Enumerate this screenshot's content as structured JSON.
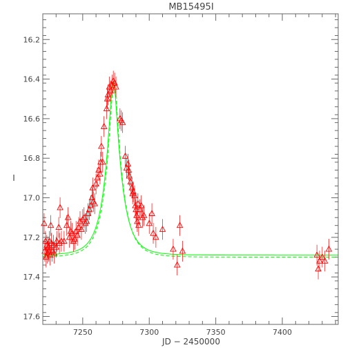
{
  "chart_data": {
    "type": "scatter",
    "title": "MB15495I",
    "xlabel": "JD − 2450000",
    "ylabel": "I",
    "xlim": [
      7220,
      7442
    ],
    "ylim": [
      17.64,
      16.07
    ],
    "y_inverted": true,
    "x_ticks": [
      7250,
      7300,
      7350,
      7400
    ],
    "y_ticks": [
      16.2,
      16.4,
      16.6,
      16.8,
      17.0,
      17.2,
      17.4,
      17.6
    ],
    "y_tick_labels": [
      "16.2",
      "16.4",
      "16.6",
      "16.8",
      "17.0",
      "17.2",
      "17.4",
      "17.6"
    ],
    "grid": false,
    "colors": {
      "data": "#ff0000",
      "model": "#00ff00",
      "axes": "#666666",
      "text": "#444444"
    },
    "series": [
      {
        "marker": "triangle",
        "points": [
          [
            7221,
            17.13
          ],
          [
            7221.5,
            17.27
          ],
          [
            7222,
            17.22
          ],
          [
            7222.5,
            17.3
          ],
          [
            7223,
            17.24
          ],
          [
            7223.5,
            17.28
          ],
          [
            7224,
            17.25
          ],
          [
            7224.5,
            17.27
          ],
          [
            7225,
            17.22
          ],
          [
            7225.5,
            17.29
          ],
          [
            7226,
            17.14
          ],
          [
            7226.5,
            17.23
          ],
          [
            7227,
            17.27
          ],
          [
            7228,
            17.24
          ],
          [
            7228.5,
            17.28
          ],
          [
            7230,
            17.25
          ],
          [
            7230.5,
            17.22
          ],
          [
            7232,
            17.15
          ],
          [
            7232.5,
            17.23
          ],
          [
            7233,
            17.05
          ],
          [
            7234,
            17.22
          ],
          [
            7236,
            17.22
          ],
          [
            7238,
            17.14
          ],
          [
            7239,
            17.1
          ],
          [
            7240,
            17.2
          ],
          [
            7241,
            17.17
          ],
          [
            7242,
            17.18
          ],
          [
            7243,
            17.22
          ],
          [
            7244,
            17.21
          ],
          [
            7245,
            17.17
          ],
          [
            7246,
            17.19
          ],
          [
            7247,
            17.15
          ],
          [
            7248,
            17.12
          ],
          [
            7249,
            17.16
          ],
          [
            7250,
            17.11
          ],
          [
            7251,
            17.1
          ],
          [
            7252,
            17.13
          ],
          [
            7253,
            17.12
          ],
          [
            7254,
            17.08
          ],
          [
            7255,
            17.06
          ],
          [
            7256,
            17.04
          ],
          [
            7257,
            17.0
          ],
          [
            7257.5,
            16.95
          ],
          [
            7258,
            17.02
          ],
          [
            7259,
            17.03
          ],
          [
            7260,
            16.93
          ],
          [
            7261,
            16.9
          ],
          [
            7262,
            16.86
          ],
          [
            7263,
            16.88
          ],
          [
            7263.5,
            16.82
          ],
          [
            7264,
            16.74
          ],
          [
            7265,
            16.82
          ],
          [
            7266,
            16.64
          ],
          [
            7268,
            16.55
          ],
          [
            7268.5,
            16.5
          ],
          [
            7269,
            16.48
          ],
          [
            7270,
            16.44
          ],
          [
            7271,
            16.46
          ],
          [
            7272,
            16.43
          ],
          [
            7273,
            16.41
          ],
          [
            7274,
            16.42
          ],
          [
            7275,
            16.44
          ],
          [
            7278,
            16.6
          ],
          [
            7279,
            16.61
          ],
          [
            7280,
            16.62
          ],
          [
            7282,
            16.79
          ],
          [
            7283,
            16.85
          ],
          [
            7284,
            16.83
          ],
          [
            7284.5,
            16.86
          ],
          [
            7285,
            16.89
          ],
          [
            7286,
            16.92
          ],
          [
            7287,
            16.95
          ],
          [
            7287.5,
            16.98
          ],
          [
            7288,
            16.97
          ],
          [
            7289,
            16.99
          ],
          [
            7289.5,
            17.04
          ],
          [
            7290,
            17.06
          ],
          [
            7290.5,
            17.09
          ],
          [
            7291,
            17.12
          ],
          [
            7291.5,
            17.03
          ],
          [
            7292,
            17.14
          ],
          [
            7293,
            17.06
          ],
          [
            7294,
            17.04
          ],
          [
            7295,
            17.1
          ],
          [
            7296,
            17.09
          ],
          [
            7300,
            17.13
          ],
          [
            7302,
            17.08
          ],
          [
            7303,
            17.18
          ],
          [
            7305,
            17.2
          ],
          [
            7310,
            17.16
          ],
          [
            7318,
            17.26
          ],
          [
            7321,
            17.34
          ],
          [
            7323,
            17.14
          ],
          [
            7325,
            17.27
          ],
          [
            7426,
            17.29
          ],
          [
            7427,
            17.36
          ],
          [
            7428,
            17.32
          ],
          [
            7430,
            17.3
          ],
          [
            7432,
            17.32
          ],
          [
            7435,
            17.26
          ]
        ]
      }
    ],
    "model_curves": [
      {
        "style": "solid",
        "baseline": 17.29,
        "peak_x": 7273,
        "peak_y": 16.41
      },
      {
        "style": "dashed",
        "baseline": 17.3,
        "peak_x": 7273.5,
        "peak_y": 16.42
      }
    ]
  }
}
